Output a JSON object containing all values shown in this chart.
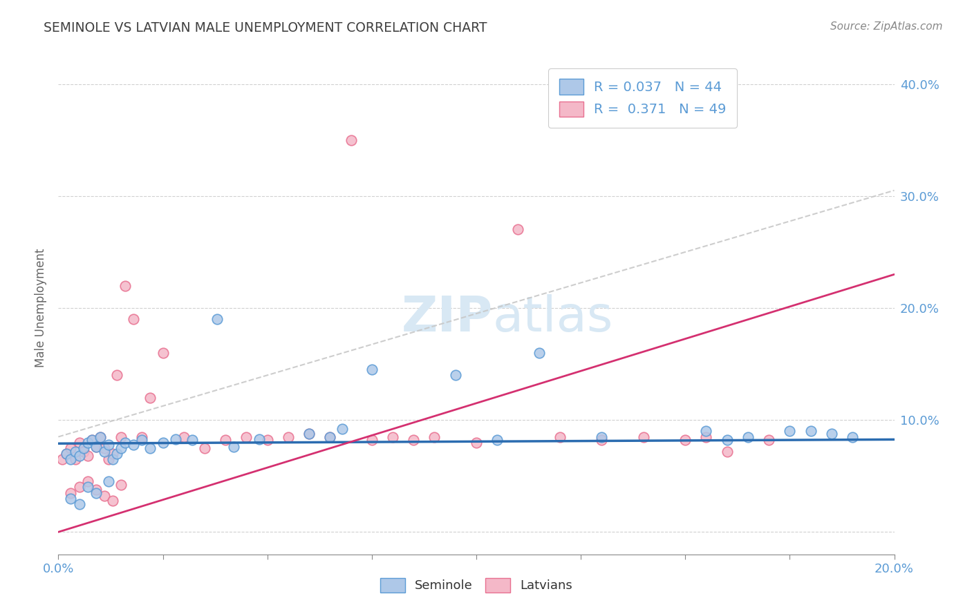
{
  "title": "SEMINOLE VS LATVIAN MALE UNEMPLOYMENT CORRELATION CHART",
  "source": "Source: ZipAtlas.com",
  "ylabel": "Male Unemployment",
  "r_seminole": 0.037,
  "n_seminole": 44,
  "r_latvian": 0.371,
  "n_latvian": 49,
  "xlim": [
    0.0,
    0.2
  ],
  "ylim": [
    -0.02,
    0.42
  ],
  "color_seminole": "#aec8e8",
  "color_latvian": "#f4b8c8",
  "edge_seminole": "#5b9bd5",
  "edge_latvian": "#e87090",
  "trendline_seminole_color": "#2b6cb0",
  "trendline_latvian_color": "#d43070",
  "trendline_dashed_color": "#c8c8c8",
  "background_color": "#ffffff",
  "grid_color": "#d0d0d0",
  "axis_label_color": "#5b9bd5",
  "title_color": "#404040",
  "watermark_color": "#d8e8f4",
  "legend_text_color": "#5b9bd5",
  "sem_trendline_intercept": 0.079,
  "sem_trendline_slope": 0.018,
  "lat_trendline_intercept": 0.0,
  "lat_trendline_slope": 1.15,
  "dash_trendline_intercept": 0.085,
  "dash_trendline_slope": 1.1,
  "seminole_x": [
    0.002,
    0.003,
    0.004,
    0.005,
    0.006,
    0.007,
    0.008,
    0.009,
    0.01,
    0.011,
    0.012,
    0.013,
    0.014,
    0.015,
    0.016,
    0.018,
    0.02,
    0.022,
    0.025,
    0.028,
    0.032,
    0.038,
    0.042,
    0.048,
    0.06,
    0.065,
    0.068,
    0.075,
    0.095,
    0.105,
    0.115,
    0.13,
    0.155,
    0.16,
    0.165,
    0.175,
    0.18,
    0.185,
    0.19,
    0.003,
    0.005,
    0.007,
    0.009,
    0.012
  ],
  "seminole_y": [
    0.07,
    0.065,
    0.072,
    0.068,
    0.075,
    0.08,
    0.082,
    0.076,
    0.085,
    0.072,
    0.078,
    0.065,
    0.07,
    0.075,
    0.08,
    0.078,
    0.082,
    0.075,
    0.08,
    0.083,
    0.082,
    0.19,
    0.076,
    0.083,
    0.088,
    0.085,
    0.092,
    0.145,
    0.14,
    0.082,
    0.16,
    0.085,
    0.09,
    0.082,
    0.085,
    0.09,
    0.09,
    0.088,
    0.085,
    0.03,
    0.025,
    0.04,
    0.035,
    0.045
  ],
  "latvian_x": [
    0.001,
    0.002,
    0.003,
    0.004,
    0.005,
    0.006,
    0.007,
    0.008,
    0.009,
    0.01,
    0.011,
    0.012,
    0.013,
    0.014,
    0.015,
    0.016,
    0.018,
    0.02,
    0.022,
    0.025,
    0.03,
    0.035,
    0.04,
    0.045,
    0.05,
    0.055,
    0.06,
    0.065,
    0.07,
    0.075,
    0.08,
    0.085,
    0.09,
    0.1,
    0.11,
    0.12,
    0.13,
    0.14,
    0.15,
    0.155,
    0.16,
    0.17,
    0.003,
    0.005,
    0.007,
    0.009,
    0.011,
    0.013,
    0.015
  ],
  "latvian_y": [
    0.065,
    0.07,
    0.075,
    0.065,
    0.08,
    0.072,
    0.068,
    0.082,
    0.076,
    0.085,
    0.075,
    0.065,
    0.07,
    0.14,
    0.085,
    0.22,
    0.19,
    0.085,
    0.12,
    0.16,
    0.085,
    0.075,
    0.082,
    0.085,
    0.082,
    0.085,
    0.088,
    0.085,
    0.35,
    0.082,
    0.085,
    0.082,
    0.085,
    0.08,
    0.27,
    0.085,
    0.082,
    0.085,
    0.082,
    0.085,
    0.072,
    0.082,
    0.035,
    0.04,
    0.045,
    0.038,
    0.032,
    0.028,
    0.042
  ]
}
